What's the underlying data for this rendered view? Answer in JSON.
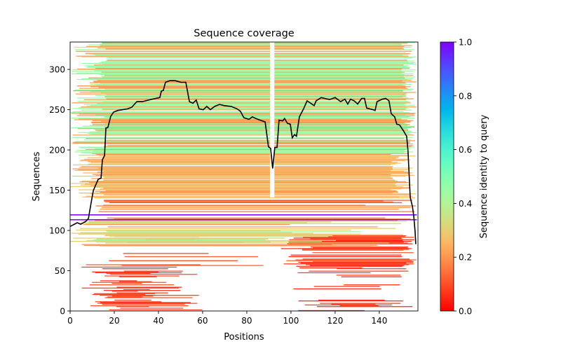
{
  "chart_data": {
    "type": "heatmap",
    "title": "Sequence coverage",
    "xlabel": "Positions",
    "ylabel": "Sequences",
    "xlim": [
      0,
      157.5
    ],
    "ylim": [
      0,
      334
    ],
    "xticks": [
      0,
      20,
      40,
      60,
      80,
      100,
      120,
      140
    ],
    "yticks": [
      0,
      50,
      100,
      150,
      200,
      250,
      300
    ],
    "colorbar": {
      "label": "Sequence identity to query",
      "range": [
        0,
        1
      ],
      "ticks": [
        "0.0",
        "0.2",
        "0.4",
        "0.6",
        "0.8",
        "1.0"
      ],
      "colormap": "rainbow_r"
    },
    "msa_bands": [
      {
        "seq": [
          0,
          55
        ],
        "x0": [
          5,
          25
        ],
        "x1": [
          30,
          60
        ],
        "identity": [
          0.05,
          0.08,
          0.1
        ],
        "fill": 0.65
      },
      {
        "seq": [
          0,
          55
        ],
        "x0": [
          100,
          125
        ],
        "x1": [
          130,
          157
        ],
        "identity": [
          0.05,
          0.08
        ],
        "fill": 0.3
      },
      {
        "seq": [
          55,
          95
        ],
        "x0": [
          95,
          110
        ],
        "x1": [
          150,
          157
        ],
        "identity": [
          0.05,
          0.08,
          0.12
        ],
        "fill": 0.7
      },
      {
        "seq": [
          55,
          95
        ],
        "x0": [
          5,
          40
        ],
        "x1": [
          50,
          90
        ],
        "identity": [
          0.08,
          0.12
        ],
        "fill": 0.3
      },
      {
        "seq": [
          80,
          112
        ],
        "x0": [
          0,
          20
        ],
        "x1": [
          88,
          157
        ],
        "identity": [
          0.2,
          0.3,
          0.35,
          0.45
        ],
        "fill": 0.85
      },
      {
        "seq": [
          112,
          140
        ],
        "x0": [
          10,
          20
        ],
        "x1": [
          130,
          157
        ],
        "identity": [
          0.1,
          0.15,
          0.2
        ],
        "fill": 0.6
      },
      {
        "seq": [
          140,
          195
        ],
        "x0": [
          0,
          17
        ],
        "x1": [
          145,
          157
        ],
        "identity": [
          0.25,
          0.3,
          0.2,
          0.28
        ],
        "fill": 0.9
      },
      {
        "seq": [
          195,
          334
        ],
        "x0": [
          0,
          17
        ],
        "x1": [
          150,
          157
        ],
        "identity": [
          0.45,
          0.2,
          0.45,
          0.22
        ],
        "fill": 0.95
      }
    ],
    "query_rows": [
      {
        "seq": 113,
        "identity": 1.0,
        "x": [
          0,
          157
        ]
      },
      {
        "seq": 119,
        "identity": 1.0,
        "x": [
          0,
          157
        ]
      }
    ],
    "coverage_line": {
      "color": "#000000",
      "x": [
        0,
        3.2,
        4.8,
        7,
        8.3,
        9.5,
        10.5,
        12.7,
        14,
        14.6,
        15.6,
        16.2,
        17.1,
        18.4,
        19.7,
        21.6,
        23.8,
        26,
        27.9,
        30.2,
        32.7,
        36.5,
        38.7,
        40.6,
        41.3,
        42.2,
        43.2,
        45.1,
        47.6,
        50.2,
        52.4,
        54,
        55.6,
        57.1,
        58.4,
        60.3,
        61.9,
        63.5,
        65.4,
        67.6,
        69.8,
        73,
        75.6,
        77.1,
        78.7,
        81,
        82.5,
        85,
        88.3,
        89.8,
        90.8,
        91.7,
        92.7,
        93.7,
        94.6,
        96.2,
        97.1,
        98.4,
        99.7,
        100.6,
        101.6,
        102.5,
        103.8,
        105.7,
        107.3,
        110.5,
        111.4,
        113.7,
        117.5,
        120,
        122.5,
        124.4,
        125.7,
        127,
        128.6,
        130.2,
        132,
        133.3,
        134.3,
        137.1,
        138.1,
        139,
        141.3,
        142.9,
        144.4,
        145.4,
        147,
        147.9,
        149.2,
        151.1,
        152.4,
        153,
        154,
        155,
        155.6,
        156.2,
        156.5
      ],
      "y": [
        105,
        109.6,
        107.8,
        111,
        114.8,
        134,
        149.6,
        163.5,
        165,
        187.8,
        193,
        227,
        228,
        241.7,
        247,
        249,
        250,
        251,
        253,
        260,
        260,
        262.6,
        264,
        265,
        273,
        274,
        284,
        286,
        286,
        284,
        284,
        260,
        258,
        262,
        251,
        250,
        254,
        250,
        254,
        256.5,
        255,
        254,
        251,
        248,
        240,
        238,
        241,
        238,
        234.8,
        204,
        202,
        177,
        203,
        203,
        237,
        236,
        239,
        233,
        232,
        215,
        219,
        217,
        241,
        251,
        261,
        255,
        261,
        265,
        262.6,
        265,
        260,
        263,
        257,
        263,
        261,
        257,
        264,
        264,
        252,
        250,
        249,
        260,
        263,
        264,
        261,
        245,
        241,
        232,
        231,
        223,
        217,
        199,
        141,
        130,
        118,
        99,
        83
      ]
    }
  }
}
